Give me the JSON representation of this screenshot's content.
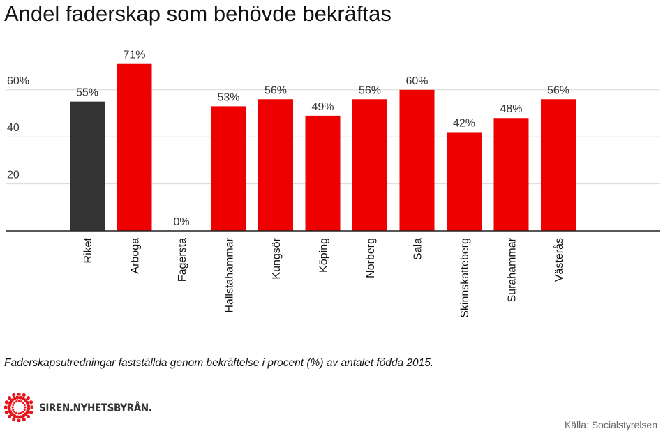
{
  "chart_data": {
    "type": "bar",
    "title": "Andel faderskap som behövde bekräftas",
    "categories": [
      "Riket",
      "Arboga",
      "Fagersta",
      "Hallstahammar",
      "Kungsör",
      "Köping",
      "Norberg",
      "Sala",
      "Skinnskatteberg",
      "Surahammar",
      "Västerås"
    ],
    "values": [
      55,
      71,
      0,
      53,
      56,
      49,
      56,
      60,
      42,
      48,
      56
    ],
    "data_labels": [
      "55%",
      "71%",
      "0%",
      "53%",
      "56%",
      "49%",
      "56%",
      "60%",
      "42%",
      "48%",
      "56%"
    ],
    "bar_colors": [
      "#333333",
      "#ee0000",
      "#ee0000",
      "#ee0000",
      "#ee0000",
      "#ee0000",
      "#ee0000",
      "#ee0000",
      "#ee0000",
      "#ee0000",
      "#ee0000"
    ],
    "yticks": [
      20,
      40,
      60
    ],
    "ytick_labels": [
      "20",
      "40",
      "60%"
    ],
    "ylim": [
      0,
      72
    ],
    "grid": true,
    "xlabel": "",
    "ylabel": ""
  },
  "caption": "Faderskapsutredningar fastställda genom bekräftelse i procent (%) av antalet födda 2015.",
  "logo": {
    "text": "SIREN.NYHETSBYRÅN.",
    "color": "#e8141c"
  },
  "source": "Källa: Socialstyrelsen"
}
